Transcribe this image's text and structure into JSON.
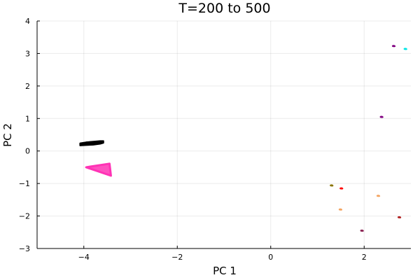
{
  "chart_data": {
    "type": "scatter",
    "title": "T=200 to 500",
    "xlabel": "PC 1",
    "ylabel": "PC 2",
    "xlim": [
      -5.0,
      3.0
    ],
    "ylim": [
      -3.0,
      4.0
    ],
    "x_ticks": [
      -4,
      -2,
      0,
      2
    ],
    "x_tick_labels": [
      "−4",
      "−2",
      "0",
      "2"
    ],
    "y_ticks": [
      -3,
      -2,
      -1,
      0,
      1,
      2,
      3,
      4
    ],
    "y_tick_labels": [
      "−3",
      "−2",
      "−1",
      "0",
      "1",
      "2",
      "3",
      "4"
    ],
    "grid": true,
    "legend": "none",
    "series": [
      {
        "color": "#000000",
        "shape": "band",
        "x": [
          -4.08,
          -3.95,
          -3.8,
          -3.65,
          -3.58
        ],
        "y_upper": [
          0.24,
          0.27,
          0.29,
          0.31,
          0.31
        ],
        "y_lower": [
          0.17,
          0.18,
          0.19,
          0.22,
          0.25
        ]
      },
      {
        "color": "#ff33b5",
        "shape": "triangle",
        "points": [
          [
            -3.95,
            -0.5
          ],
          [
            -3.45,
            -0.39
          ],
          [
            -3.42,
            -0.76
          ]
        ]
      },
      {
        "color": "#800080",
        "shape": "cluster",
        "x": [
          2.63
        ],
        "y": [
          3.23
        ]
      },
      {
        "color": "#00e5e5",
        "shape": "cluster",
        "x": [
          2.88
        ],
        "y": [
          3.14
        ]
      },
      {
        "color": "#800080",
        "shape": "cluster",
        "x": [
          2.37
        ],
        "y": [
          1.05
        ]
      },
      {
        "color": "#8b7500",
        "shape": "cluster",
        "x": [
          1.3
        ],
        "y": [
          -1.06
        ]
      },
      {
        "color": "#ff0000",
        "shape": "cluster",
        "x": [
          1.51
        ],
        "y": [
          -1.15
        ]
      },
      {
        "color": "#f4a460",
        "shape": "cluster",
        "x": [
          2.3
        ],
        "y": [
          -1.38
        ]
      },
      {
        "color": "#f4a460",
        "shape": "cluster",
        "x": [
          1.49
        ],
        "y": [
          -1.8
        ]
      },
      {
        "color": "#b22222",
        "shape": "cluster",
        "x": [
          2.75
        ],
        "y": [
          -2.04
        ]
      },
      {
        "color": "#8b2252",
        "shape": "cluster",
        "x": [
          1.95
        ],
        "y": [
          -2.45
        ]
      }
    ]
  }
}
